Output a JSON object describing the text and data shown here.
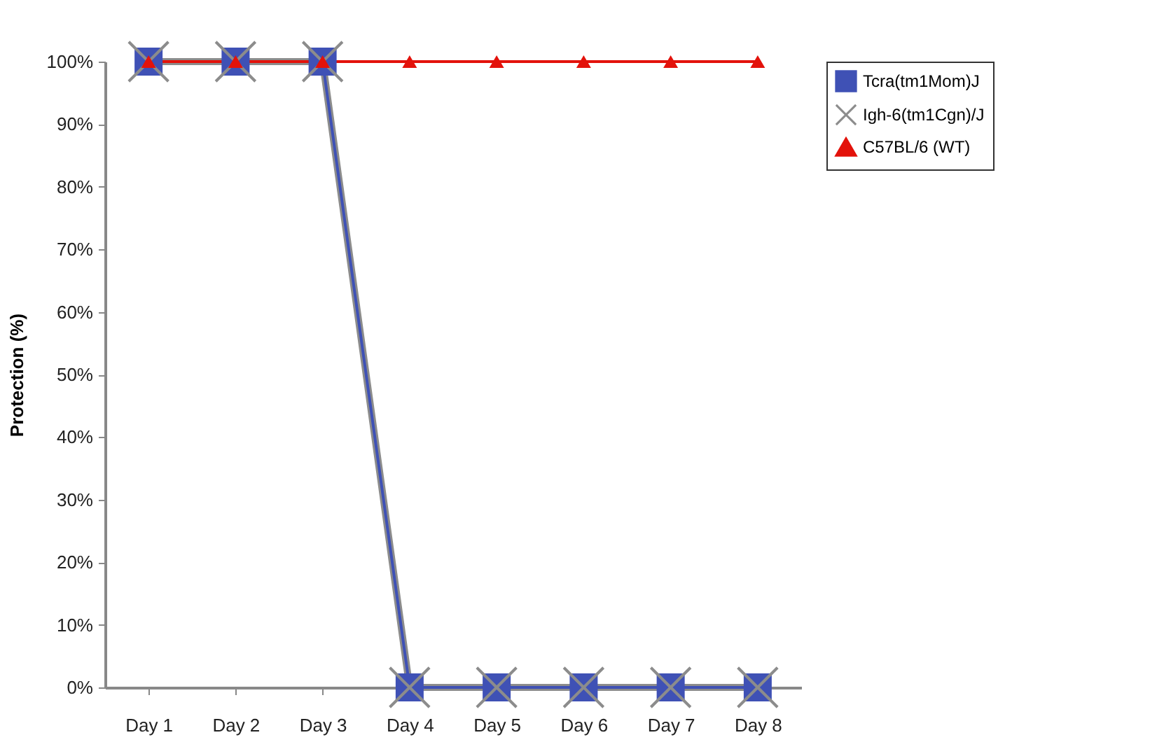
{
  "chart_data": {
    "type": "line",
    "ylabel": "Protection (%)",
    "categories": [
      "Day 1",
      "Day 2",
      "Day 3",
      "Day 4",
      "Day 5",
      "Day 6",
      "Day 7",
      "Day 8"
    ],
    "ylim": [
      0,
      100
    ],
    "yticks": [
      {
        "value": 0,
        "label": "0%"
      },
      {
        "value": 10,
        "label": "10%"
      },
      {
        "value": 20,
        "label": "20%"
      },
      {
        "value": 30,
        "label": "30%"
      },
      {
        "value": 40,
        "label": "40%"
      },
      {
        "value": 50,
        "label": "50%"
      },
      {
        "value": 60,
        "label": "60%"
      },
      {
        "value": 70,
        "label": "70%"
      },
      {
        "value": 80,
        "label": "80%"
      },
      {
        "value": 90,
        "label": "90%"
      },
      {
        "value": 100,
        "label": "100%"
      }
    ],
    "grid": false,
    "legend": "right",
    "line_style": "solid",
    "series": [
      {
        "name": "Tcra(tm1Mom)J",
        "color": "#3f51b5",
        "marker": "square",
        "values": [
          100,
          100,
          100,
          0,
          0,
          0,
          0,
          0
        ]
      },
      {
        "name": "Igh-6(tm1Cgn)/J",
        "color": "#8c8c8c",
        "marker": "cross",
        "values": [
          100,
          100,
          100,
          0,
          0,
          0,
          0,
          0
        ]
      },
      {
        "name": "C57BL/6 (WT)",
        "color": "#e3120b",
        "marker": "triangle",
        "values": [
          100,
          100,
          100,
          100,
          100,
          100,
          100,
          100
        ]
      }
    ]
  }
}
